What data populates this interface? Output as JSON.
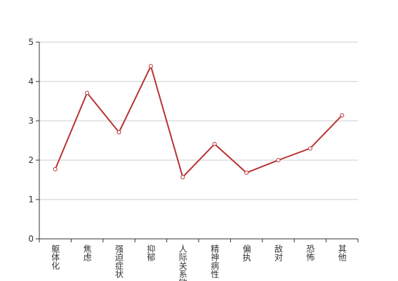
{
  "chart_data": {
    "type": "line",
    "categories": [
      "躯体化",
      "焦虑",
      "强迫症状",
      "抑郁",
      "人际关系敏感",
      "精神病性",
      "偏执",
      "敌对",
      "恐怖",
      "其他"
    ],
    "series": [
      {
        "color": "#b83232",
        "values": [
          1.77,
          3.71,
          2.71,
          4.39,
          1.57,
          2.41,
          1.68,
          2.0,
          2.3,
          3.14
        ]
      }
    ],
    "ylim": [
      0,
      5
    ],
    "yticks": [
      0,
      1,
      2,
      3,
      4,
      5
    ],
    "grid": true
  }
}
